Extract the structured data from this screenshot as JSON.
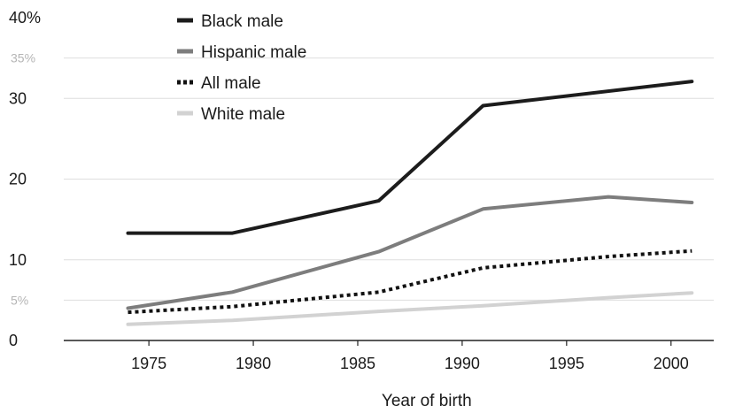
{
  "chart_data": {
    "type": "line",
    "xlabel": "Year of birth",
    "ylabel": "",
    "x_ticks": [
      "1975",
      "1980",
      "1985",
      "1990",
      "1995",
      "2000"
    ],
    "x_tick_values": [
      1975,
      1980,
      1985,
      1990,
      1995,
      2000
    ],
    "y_ticks": [
      {
        "value": 0,
        "label": "0"
      },
      {
        "value": 5,
        "label": "5%"
      },
      {
        "value": 10,
        "label": "10"
      },
      {
        "value": 20,
        "label": "20"
      },
      {
        "value": 30,
        "label": "30"
      },
      {
        "value": 35,
        "label": "35%"
      },
      {
        "value": 40,
        "label": "40%"
      }
    ],
    "xlim": [
      1970.5,
      2002.3
    ],
    "ylim": [
      0,
      40
    ],
    "grid": true,
    "legend_position": "top-left",
    "series": [
      {
        "name": "Black male",
        "color": "#1c1c1c",
        "style": "solid",
        "x": [
          1974,
          1979,
          1986,
          1991,
          2001
        ],
        "y": [
          13.3,
          13.3,
          17.3,
          29.1,
          32.1
        ]
      },
      {
        "name": "Hispanic male",
        "color": "#7d7d7d",
        "style": "solid",
        "x": [
          1974,
          1979,
          1986,
          1991,
          1997,
          2001
        ],
        "y": [
          4.0,
          6.0,
          11.0,
          16.3,
          17.8,
          17.1
        ]
      },
      {
        "name": "All male",
        "color": "#111111",
        "style": "dotted",
        "x": [
          1974,
          1979,
          1986,
          1991,
          1997,
          2001
        ],
        "y": [
          3.5,
          4.2,
          6.0,
          9.0,
          10.4,
          11.1
        ]
      },
      {
        "name": "White male",
        "color": "#d2d2d2",
        "style": "solid",
        "x": [
          1974,
          1979,
          1986,
          1991,
          1997,
          2001
        ],
        "y": [
          2.0,
          2.5,
          3.6,
          4.3,
          5.3,
          5.9
        ]
      }
    ]
  }
}
